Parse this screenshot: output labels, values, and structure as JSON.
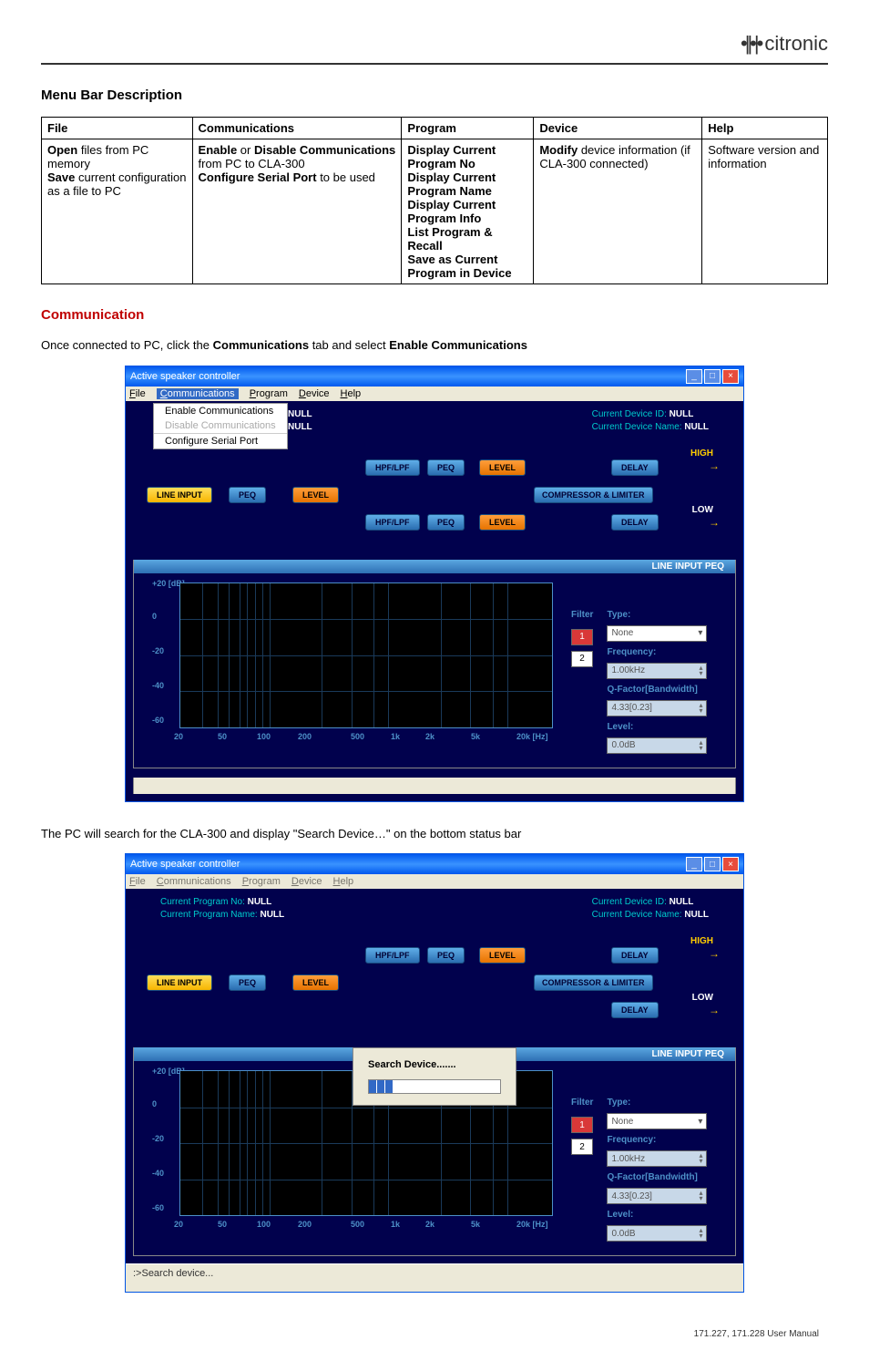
{
  "header": {
    "logo_text": "citronic"
  },
  "section1_title": "Menu Bar Description",
  "menu_table": {
    "headers": [
      "File",
      "Communications",
      "Program",
      "Device",
      "Help"
    ],
    "row": {
      "file": "<b>Open</b> files from PC memory<br><b>Save</b> current configuration as a file to PC",
      "comms": "<b>Enable</b> or <b>Disable Communications</b> from PC to CLA-300<br><b>Configure Serial Port</b> to be used",
      "program": "<b>Display Current Program No</b><br><b>Display Current Program Name</b><br><b>Display Current Program Info</b><br><b>List Program & Recall</b><br><b>Save as Current Program in Device</b>",
      "device": "<b>Modify</b> device information (if CLA-300 connected)",
      "help": "Software version and information"
    }
  },
  "section2_title": "Communication",
  "body_text1_parts": [
    "Once connected to PC, click the ",
    "Communications",
    " tab and select ",
    "Enable Communications"
  ],
  "body_text2": "The PC will search for the CLA-300 and display \"Search Device…\" on the bottom status bar",
  "app": {
    "title": "Active speaker controller",
    "menu": [
      "File",
      "Communications",
      "Program",
      "Device",
      "Help"
    ],
    "menu_underline": [
      "F",
      "C",
      "P",
      "D",
      "H"
    ],
    "comm_dropdown": [
      "Enable Communications",
      "Disable Communications",
      "Configure Serial Port"
    ],
    "info_left": {
      "l1_label": "Current Program No:",
      "l1_val": "NULL",
      "l2_label": "Current Program Name:",
      "l2_val": "NULL"
    },
    "info_right": {
      "l1_label": "Current Device ID:",
      "l1_val": "NULL",
      "l2_label": "Current Device Name:",
      "l2_val": "NULL"
    },
    "flow": {
      "line_input": "LINE INPUT",
      "peq": "PEQ",
      "level": "LEVEL",
      "hpf_lpf": "HPF/LPF",
      "delay": "DELAY",
      "comp": "COMPRESSOR & LIMITER",
      "high": "HIGH",
      "low": "LOW"
    },
    "peq_header": "LINE INPUT PEQ",
    "graph": {
      "y_labels": [
        "+20 [dB]",
        "0",
        "-20",
        "-40",
        "-60"
      ],
      "x_labels": [
        "20",
        "50",
        "100",
        "200",
        "500",
        "1k",
        "2k",
        "5k",
        "20k [Hz]"
      ]
    },
    "filter": {
      "title1": "Filter",
      "title2": "Type:",
      "nums": [
        "1",
        "2"
      ],
      "type_val": "None",
      "freq_label": "Frequency:",
      "freq_val": "1.00kHz",
      "q_label": "Q-Factor[Bandwidth]",
      "q_val": "4.33[0.23]",
      "level_label": "Level:",
      "level_val": "0.0dB"
    },
    "search_title": "Search Device.......",
    "status_text": ":>Search device..."
  },
  "footer": "171.227, 171.228 User Manual"
}
